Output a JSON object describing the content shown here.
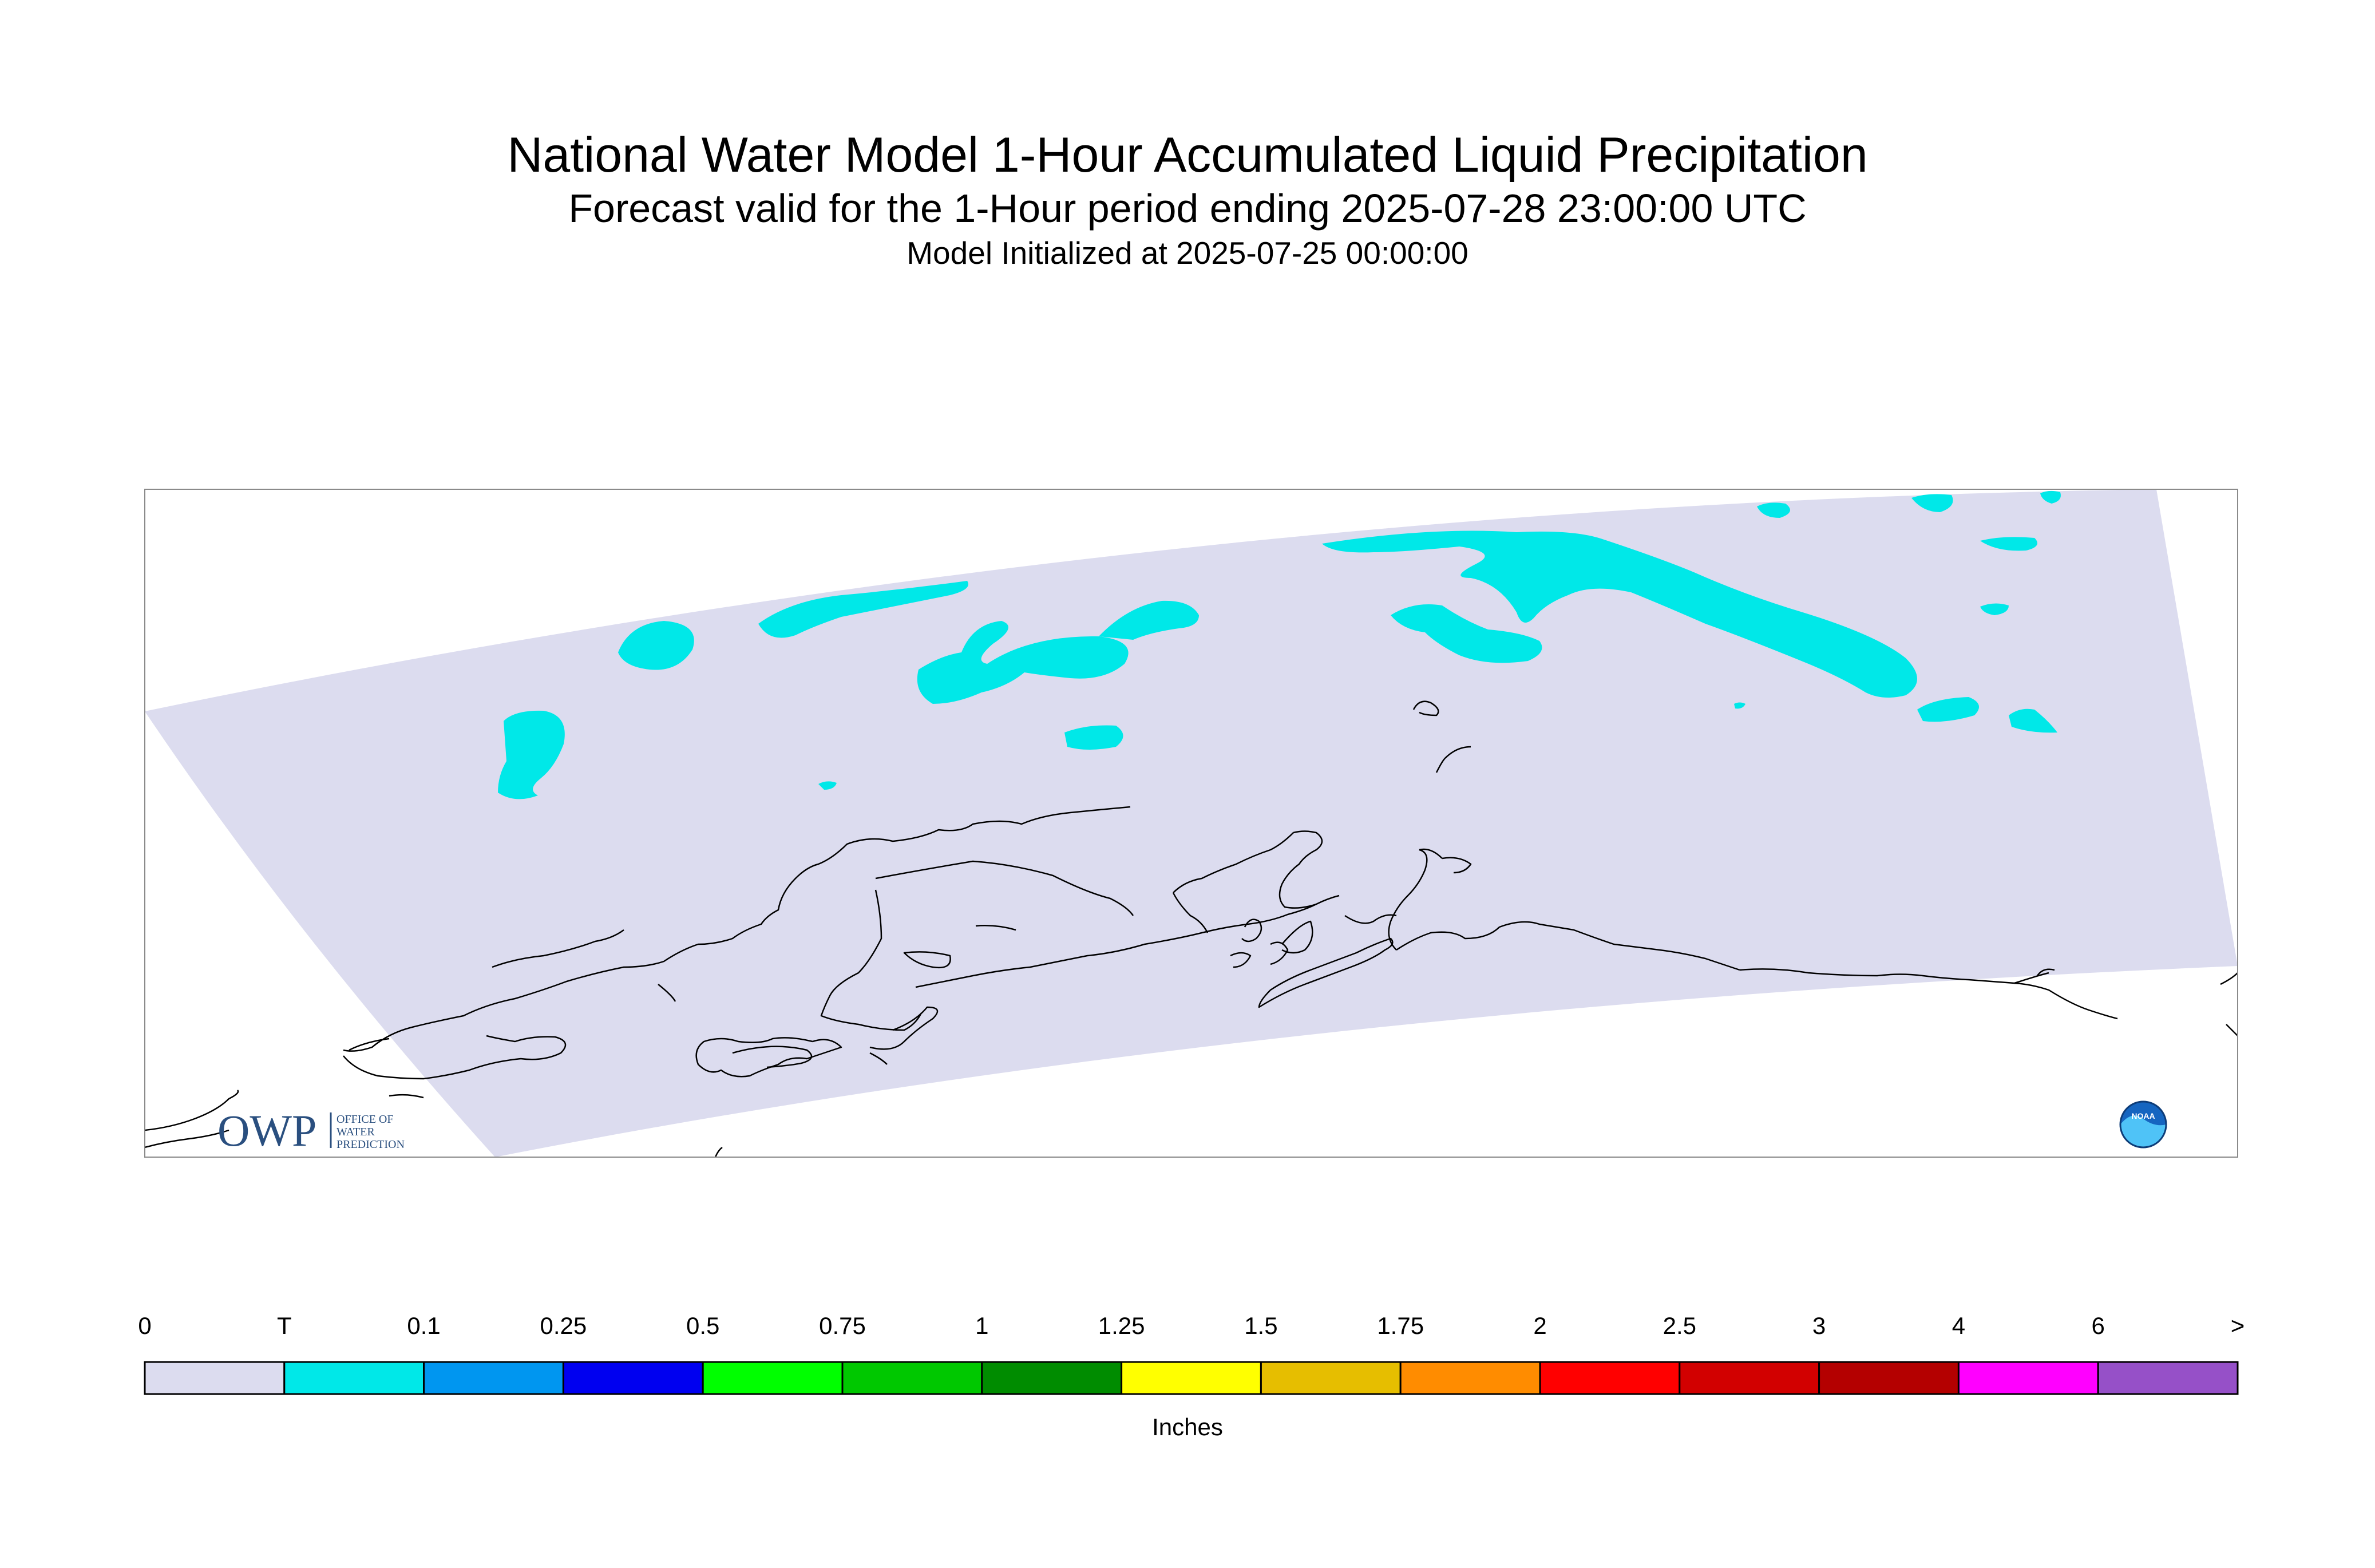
{
  "header": {
    "title": "National Water Model 1-Hour Accumulated Liquid Precipitation",
    "subtitle": "Forecast valid for the 1-Hour period ending 2025-07-28 23:00:00 UTC",
    "init_line": "Model Initialized at 2025-07-25 00:00:00"
  },
  "map": {
    "domain_fill": "#dcdcef",
    "precip_color": "#00e8e8",
    "coastline_color": "#000000"
  },
  "logos": {
    "owp": {
      "mark": "OWP",
      "lines": [
        "OFFICE OF",
        "WATER",
        "PREDICTION"
      ],
      "color": "#2a4f7f"
    },
    "noaa": {
      "text": "NOAA",
      "icon": "noaa-logo-icon"
    }
  },
  "colorbar": {
    "labels": [
      "0",
      "T",
      "0.1",
      "0.25",
      "0.5",
      "0.75",
      "1",
      "1.25",
      "1.5",
      "1.75",
      "2",
      "2.5",
      "3",
      "4",
      "6",
      ">"
    ],
    "colors": [
      "#dcdcef",
      "#00e8e8",
      "#0096f0",
      "#0000f0",
      "#00ff00",
      "#00c800",
      "#008c00",
      "#ffff00",
      "#e6be00",
      "#ff8c00",
      "#ff0000",
      "#d20000",
      "#b40000",
      "#ff00ff",
      "#9650c8"
    ],
    "units": "Inches"
  }
}
